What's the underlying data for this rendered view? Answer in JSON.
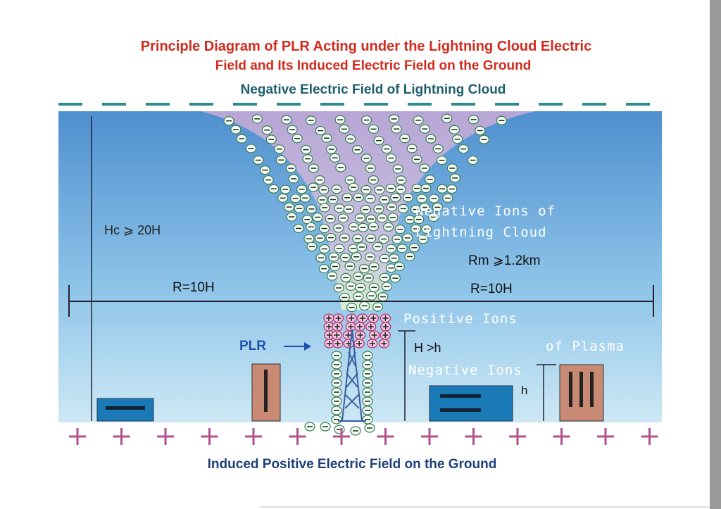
{
  "title": {
    "line1": "Principle Diagram of PLR Acting under the Lightning Cloud Electric",
    "line2": "Field and Its Induced Electric Field on the Ground"
  },
  "cloud_field": "Negative Electric Field of Lightning Cloud",
  "labels": {
    "hc": "Hc ⩾ 20H",
    "r_left": "R=10H",
    "r_right": "R=10H",
    "cloud_ions_1": "Negative Ions of",
    "cloud_ions_2": "Lightning Cloud",
    "rm": "Rm ⩾1.2km",
    "positive_ions": "Positive Ions",
    "plr": "PLR",
    "h_gt": "H >h",
    "plasma": "of Plasma",
    "negative_ions": "Negative Ions",
    "h": "h"
  },
  "ground_field": "Induced Positive Electric Field  on the Ground"
}
